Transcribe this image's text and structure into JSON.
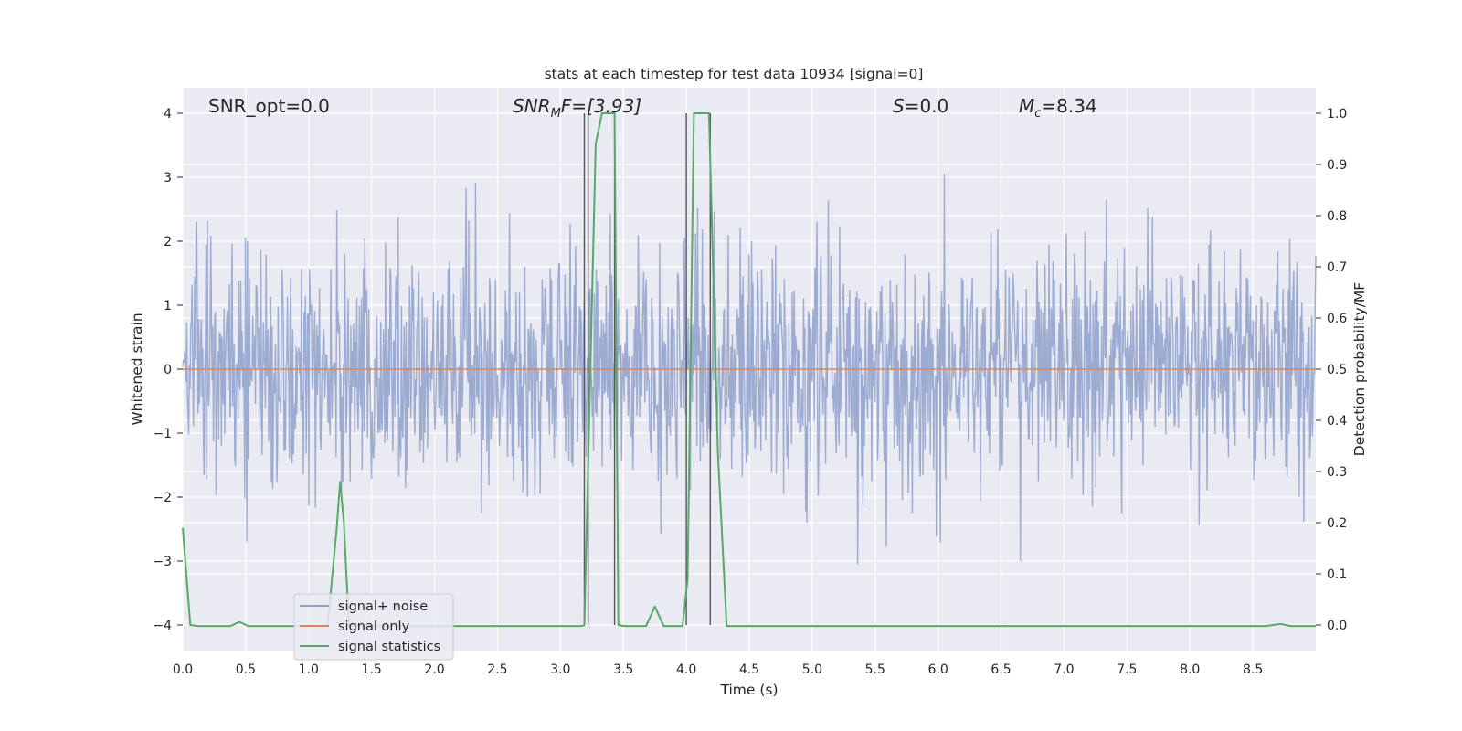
{
  "chart_data": {
    "type": "line",
    "title": "stats at each timestep for test data 10934 [signal=0]",
    "xlabel": "Time (s)",
    "ylabel_left": "Whitened strain",
    "ylabel_right": "Detection probability/MF",
    "xlim": [
      0.0,
      9.0
    ],
    "ylim_left": [
      -4.4,
      4.4
    ],
    "ylim_right": [
      -0.05,
      1.05
    ],
    "x_ticks": [
      "0.0",
      "0.5",
      "1.0",
      "1.5",
      "2.0",
      "2.5",
      "3.0",
      "3.5",
      "4.0",
      "4.5",
      "5.0",
      "5.5",
      "6.0",
      "6.5",
      "7.0",
      "7.5",
      "8.0",
      "8.5"
    ],
    "y_left_ticks": [
      "4",
      "3",
      "2",
      "1",
      "0",
      "−1",
      "−2",
      "−3",
      "−4"
    ],
    "y_right_ticks": [
      "1.0",
      "0.9",
      "0.8",
      "0.7",
      "0.6",
      "0.5",
      "0.4",
      "0.3",
      "0.2",
      "0.1",
      "0.0"
    ],
    "grid": true,
    "legend_position": "lower-left",
    "annotations": {
      "snr_opt": "SNR_opt=0.0",
      "snr_mf_prefix": "SNR",
      "snr_mf_sub": "M",
      "snr_mf_suffix": "F=[3.93]",
      "s_value": "S=0.0",
      "mc_prefix": "M",
      "mc_sub": "c",
      "mc_suffix": "=8.34"
    },
    "vertical_lines_x": [
      3.19,
      3.22,
      3.43,
      4.0,
      4.19
    ],
    "series": [
      {
        "name": "signal+ noise",
        "color": "#8da0cb",
        "kind": "noise",
        "amplitude": "roughly ±2 with spikes to about ±3.5"
      },
      {
        "name": "signal only",
        "color": "#dd8452",
        "kind": "flat",
        "y": 0.0
      },
      {
        "name": "signal statistics",
        "color": "#55a868",
        "kind": "line",
        "axis": "right",
        "x": [
          0.0,
          0.06,
          0.12,
          0.2,
          0.3,
          0.38,
          0.45,
          0.52,
          0.6,
          0.8,
          1.0,
          1.15,
          1.22,
          1.25,
          1.28,
          1.32,
          1.4,
          1.6,
          2.0,
          2.5,
          3.0,
          3.17,
          3.19,
          3.28,
          3.33,
          3.4,
          3.43,
          3.46,
          3.5,
          3.55,
          3.6,
          3.68,
          3.75,
          3.82,
          3.9,
          3.97,
          4.01,
          4.06,
          4.12,
          4.18,
          4.25,
          4.32,
          4.4,
          5.0,
          6.0,
          7.0,
          8.0,
          8.6,
          8.72,
          8.8,
          9.0
        ],
        "y": [
          0.19,
          0.0,
          -0.002,
          -0.002,
          -0.002,
          -0.002,
          0.006,
          -0.002,
          -0.002,
          -0.002,
          -0.002,
          -0.002,
          0.18,
          0.28,
          0.2,
          -0.002,
          -0.002,
          -0.002,
          -0.002,
          -0.002,
          -0.002,
          -0.002,
          0.0,
          0.94,
          1.0,
          1.0,
          1.0,
          0.0,
          -0.002,
          -0.002,
          -0.002,
          -0.002,
          0.036,
          -0.002,
          -0.002,
          -0.002,
          0.09,
          1.0,
          1.0,
          1.0,
          0.34,
          -0.002,
          -0.002,
          -0.002,
          -0.002,
          -0.002,
          -0.002,
          -0.002,
          0.002,
          -0.002,
          -0.002
        ]
      }
    ]
  }
}
